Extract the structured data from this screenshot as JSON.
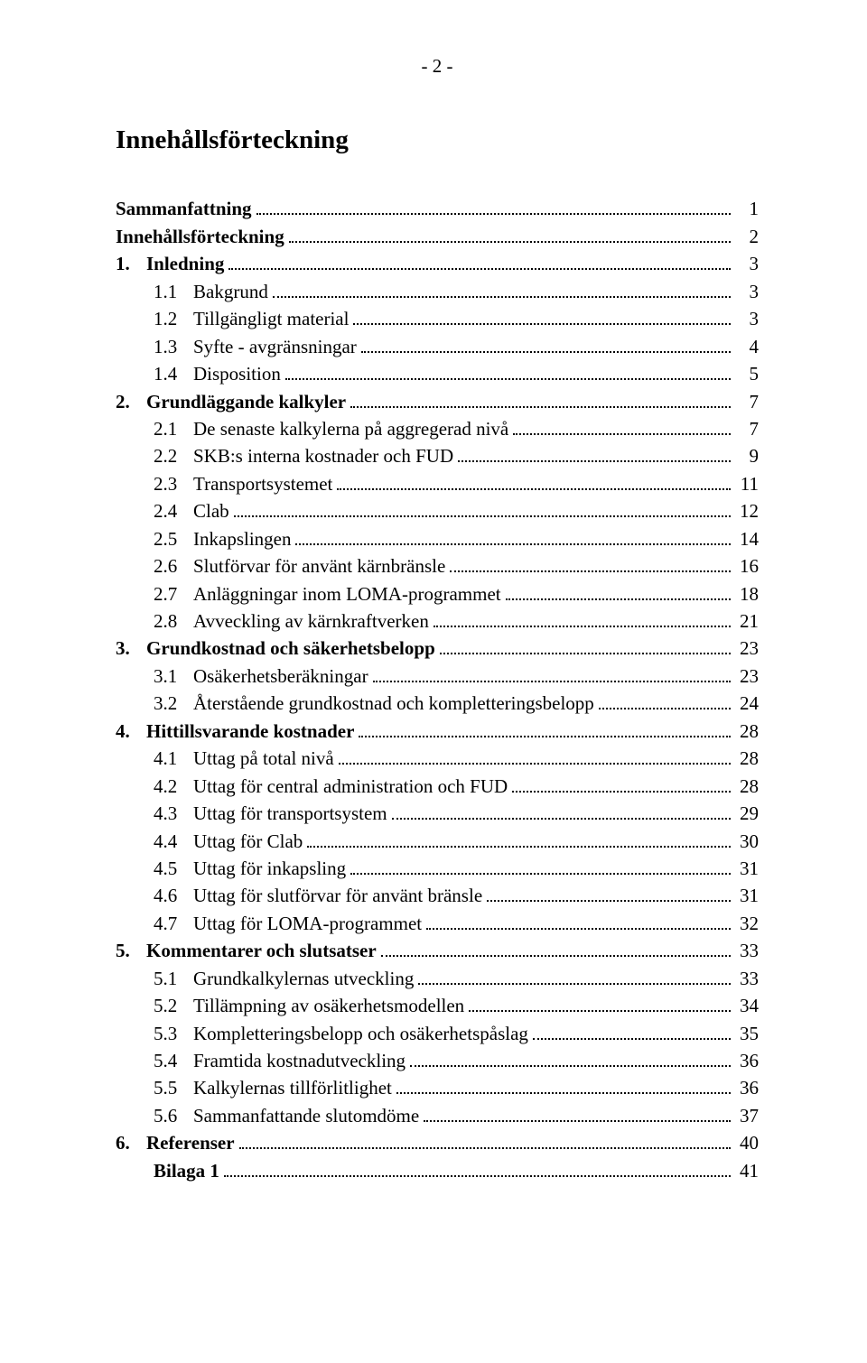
{
  "page_header": "- 2 -",
  "title": "Innehållsförteckning",
  "font_family": "Times New Roman",
  "title_fontsize": 29,
  "body_fontsize": 21,
  "text_color": "#000000",
  "background_color": "#ffffff",
  "toc": [
    {
      "level": 0,
      "num": "",
      "text": "Sammanfattning",
      "page": "1"
    },
    {
      "level": 0,
      "num": "",
      "text": "Innehållsförteckning",
      "page": "2"
    },
    {
      "level": 0,
      "num": "1.",
      "text": "Inledning",
      "page": "3"
    },
    {
      "level": 1,
      "num": "1.1",
      "text": "Bakgrund",
      "page": "3"
    },
    {
      "level": 1,
      "num": "1.2",
      "text": "Tillgängligt material",
      "page": "3"
    },
    {
      "level": 1,
      "num": "1.3",
      "text": "Syfte - avgränsningar",
      "page": "4"
    },
    {
      "level": 1,
      "num": "1.4",
      "text": "Disposition",
      "page": "5"
    },
    {
      "level": 0,
      "num": "2.",
      "text": "Grundläggande kalkyler",
      "page": "7"
    },
    {
      "level": 1,
      "num": "2.1",
      "text": "De senaste kalkylerna på aggregerad nivå",
      "page": "7"
    },
    {
      "level": 1,
      "num": "2.2",
      "text": "SKB:s interna kostnader och FUD",
      "page": "9"
    },
    {
      "level": 1,
      "num": "2.3",
      "text": "Transportsystemet",
      "page": "11"
    },
    {
      "level": 1,
      "num": "2.4",
      "text": "Clab",
      "page": "12"
    },
    {
      "level": 1,
      "num": "2.5",
      "text": "Inkapslingen",
      "page": "14"
    },
    {
      "level": 1,
      "num": "2.6",
      "text": "Slutförvar för använt kärnbränsle",
      "page": "16"
    },
    {
      "level": 1,
      "num": "2.7",
      "text": "Anläggningar inom LOMA-programmet",
      "page": "18"
    },
    {
      "level": 1,
      "num": "2.8",
      "text": "Avveckling av kärnkraftverken",
      "page": "21"
    },
    {
      "level": 0,
      "num": "3.",
      "text": "Grundkostnad och säkerhetsbelopp",
      "page": "23"
    },
    {
      "level": 1,
      "num": "3.1",
      "text": "Osäkerhetsberäkningar",
      "page": "23"
    },
    {
      "level": 1,
      "num": "3.2",
      "text": "Återstående grundkostnad och kompletteringsbelopp",
      "page": "24"
    },
    {
      "level": 0,
      "num": "4.",
      "text": "Hittillsvarande kostnader",
      "page": "28"
    },
    {
      "level": 1,
      "num": "4.1",
      "text": "Uttag på total nivå",
      "page": "28"
    },
    {
      "level": 1,
      "num": "4.2",
      "text": "Uttag för central administration och FUD",
      "page": "28"
    },
    {
      "level": 1,
      "num": "4.3",
      "text": "Uttag för transportsystem",
      "page": "29"
    },
    {
      "level": 1,
      "num": "4.4",
      "text": "Uttag för Clab",
      "page": "30"
    },
    {
      "level": 1,
      "num": "4.5",
      "text": "Uttag för inkapsling",
      "page": "31"
    },
    {
      "level": 1,
      "num": "4.6",
      "text": "Uttag för slutförvar för använt bränsle",
      "page": "31"
    },
    {
      "level": 1,
      "num": "4.7",
      "text": "Uttag för LOMA-programmet",
      "page": "32"
    },
    {
      "level": 0,
      "num": "5.",
      "text": "Kommentarer och slutsatser",
      "page": "33"
    },
    {
      "level": 1,
      "num": "5.1",
      "text": "Grundkalkylernas utveckling",
      "page": "33"
    },
    {
      "level": 1,
      "num": "5.2",
      "text": "Tillämpning av osäkerhetsmodellen",
      "page": "34"
    },
    {
      "level": 1,
      "num": "5.3",
      "text": "Kompletteringsbelopp och osäkerhetspåslag",
      "page": "35"
    },
    {
      "level": 1,
      "num": "5.4",
      "text": "Framtida kostnadutveckling",
      "page": "36"
    },
    {
      "level": 1,
      "num": "5.5",
      "text": "Kalkylernas tillförlitlighet",
      "page": "36"
    },
    {
      "level": 1,
      "num": "5.6",
      "text": "Sammanfattande slutomdöme",
      "page": "37"
    },
    {
      "level": 0,
      "num": "6.",
      "text": "Referenser",
      "page": "40"
    },
    {
      "level": 1,
      "num": "",
      "text": "Bilaga 1",
      "page": "41"
    }
  ]
}
